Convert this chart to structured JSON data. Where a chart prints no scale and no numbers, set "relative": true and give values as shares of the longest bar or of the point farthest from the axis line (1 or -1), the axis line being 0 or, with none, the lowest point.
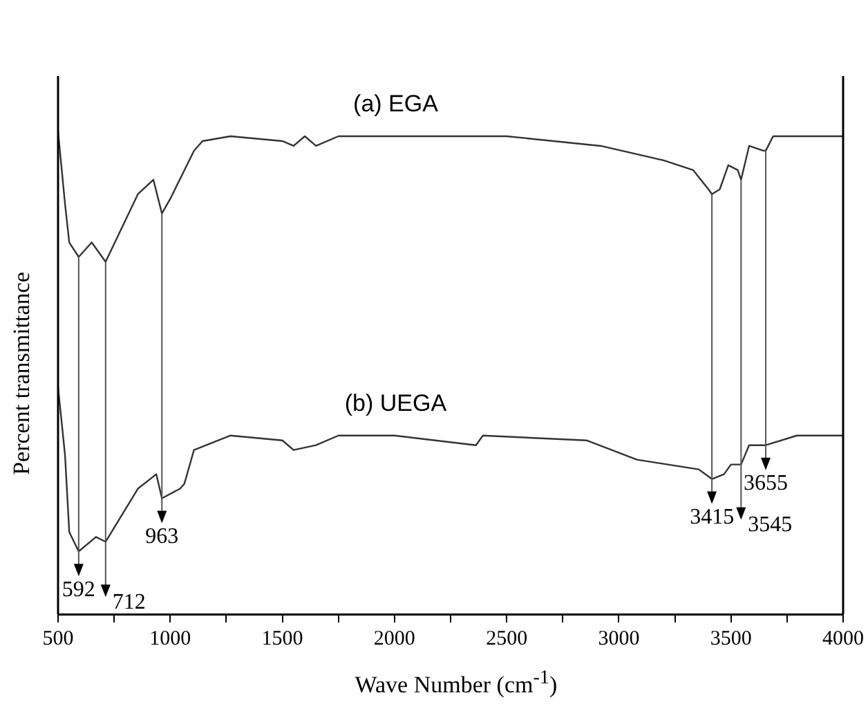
{
  "chart_data": {
    "type": "line",
    "relative": true,
    "xlabel": "Wave Number (cm$^{-1}$)",
    "ylabel": "Percent transmittance",
    "xlim": [
      500,
      4000
    ],
    "xticks": [
      500,
      {
        "value": 750,
        "label": null
      },
      1000,
      {
        "value": 1250,
        "label": null
      },
      1500,
      {
        "value": 1750,
        "label": null
      },
      2000,
      {
        "value": 2250,
        "label": null
      },
      2500,
      {
        "value": 2750,
        "label": null
      },
      3000,
      {
        "value": 3250,
        "label": null
      },
      3500,
      {
        "value": 3750,
        "label": null
      },
      4000
    ],
    "series": [
      {
        "name": "(a) EGA",
        "color": "#333333",
        "x": [
          500,
          531,
          550,
          592,
          650,
          712,
          856,
          925,
          963,
          1000,
          1106,
          1144,
          1269,
          1500,
          1550,
          1600,
          1650,
          1750,
          2000,
          2188,
          2500,
          2919,
          3200,
          3331,
          3400,
          3415,
          3450,
          3488,
          3530,
          3545,
          3581,
          3644,
          3655,
          3688,
          4000
        ],
        "values": [
          1.0,
          0.85,
          0.77,
          0.74,
          0.77,
          0.73,
          0.87,
          0.9,
          0.83,
          0.86,
          0.96,
          0.98,
          0.99,
          0.98,
          0.97,
          0.99,
          0.97,
          0.99,
          0.99,
          0.99,
          0.99,
          0.97,
          0.94,
          0.92,
          0.88,
          0.87,
          0.88,
          0.93,
          0.92,
          0.9,
          0.97,
          0.96,
          0.96,
          0.99,
          0.99
        ]
      },
      {
        "name": "(b) UEGA",
        "color": "#333333",
        "x": [
          500,
          531,
          550,
          592,
          669,
          712,
          856,
          938,
          963,
          1044,
          1063,
          1106,
          1269,
          1500,
          1550,
          1650,
          1750,
          2000,
          2363,
          2394,
          2856,
          3081,
          3356,
          3415,
          3469,
          3500,
          3545,
          3581,
          3655,
          3794,
          4000
        ],
        "values": [
          0.47,
          0.33,
          0.17,
          0.13,
          0.16,
          0.15,
          0.26,
          0.29,
          0.24,
          0.26,
          0.27,
          0.34,
          0.37,
          0.36,
          0.34,
          0.35,
          0.37,
          0.37,
          0.35,
          0.37,
          0.36,
          0.32,
          0.3,
          0.28,
          0.29,
          0.31,
          0.31,
          0.35,
          0.35,
          0.37,
          0.37
        ]
      }
    ],
    "annotations": [
      {
        "text": "592",
        "x": 592,
        "y": 0.13
      },
      {
        "text": "712",
        "x": 712,
        "y": 0.15
      },
      {
        "text": "963",
        "x": 963,
        "y": 0.24
      },
      {
        "text": "3415",
        "x": 3415,
        "y": 0.28
      },
      {
        "text": "3545",
        "x": 3545,
        "y": 0.31
      },
      {
        "text": "3655",
        "x": 3655,
        "y": 0.35
      }
    ],
    "grid": false,
    "legend": false
  }
}
